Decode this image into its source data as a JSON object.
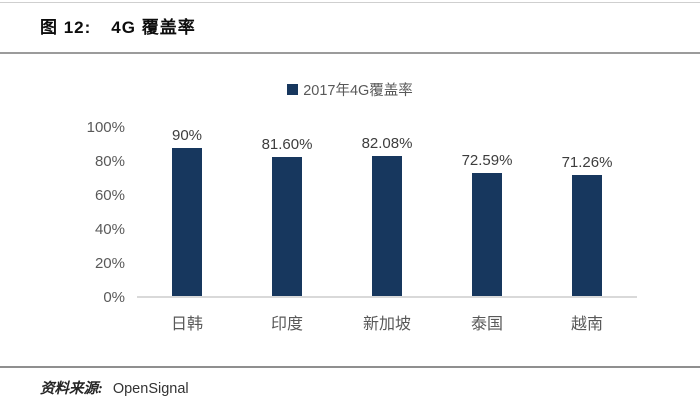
{
  "header": {
    "figure_label": "图 12:",
    "figure_title": "4G 覆盖率"
  },
  "legend": {
    "swatch_color": "#17375e",
    "label": "2017年4G覆盖率"
  },
  "chart_data": {
    "type": "bar",
    "title": "2017年4G覆盖率",
    "categories": [
      "日韩",
      "印度",
      "新加坡",
      "泰国",
      "越南"
    ],
    "values": [
      90,
      81.6,
      82.08,
      72.59,
      71.26
    ],
    "value_labels": [
      "90%",
      "81.60%",
      "82.08%",
      "72.59%",
      "71.26%"
    ],
    "yticks": [
      0,
      20,
      40,
      60,
      80,
      100
    ],
    "ytick_labels": [
      "0%",
      "20%",
      "40%",
      "60%",
      "80%",
      "100%"
    ],
    "ylim": [
      0,
      100
    ],
    "bar_color": "#17375e",
    "grid": false,
    "legend_position": "top",
    "xlabel": "",
    "ylabel": ""
  },
  "footer": {
    "source_label": "资料来源:",
    "source_value": "OpenSignal"
  }
}
